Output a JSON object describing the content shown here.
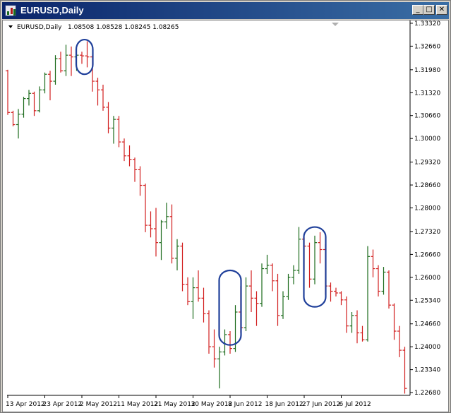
{
  "window": {
    "title": "EURUSD,Daily",
    "minimize_label": "_",
    "maximize_label": "□",
    "close_label": "✕"
  },
  "header": {
    "symbol_label": "EURUSD,Daily",
    "ohlc_values": "1.08508 1.08528 1.08245 1.08265"
  },
  "colors": {
    "bull": "#1c6b1c",
    "bear": "#d21e1e",
    "highlight": "#1f3f9a"
  },
  "chart_data": {
    "type": "ohlc-bar",
    "ylim": [
      1.226,
      1.334
    ],
    "y_ticks": [
      "1.33320",
      "1.32660",
      "1.31980",
      "1.31320",
      "1.30660",
      "1.30000",
      "1.29320",
      "1.28660",
      "1.28000",
      "1.27320",
      "1.26660",
      "1.26000",
      "1.25340",
      "1.24660",
      "1.24000",
      "1.23340",
      "1.22680"
    ],
    "x_ticks": [
      "13 Apr 2012",
      "23 Apr 2012",
      "2 May 2012",
      "11 May 2012",
      "21 May 2012",
      "30 May 2012",
      "8 Jun 2012",
      "18 Jun 2012",
      "27 Jun 2012",
      "6 Jul 2012"
    ],
    "ohlc": [
      [
        1.3195,
        1.3198,
        1.3068,
        1.3075
      ],
      [
        1.3075,
        1.308,
        1.3035,
        1.304
      ],
      [
        1.304,
        1.3085,
        1.3,
        1.307
      ],
      [
        1.307,
        1.312,
        1.306,
        1.3115
      ],
      [
        1.3115,
        1.314,
        1.3095,
        1.313
      ],
      [
        1.313,
        1.3135,
        1.3065,
        1.308
      ],
      [
        1.308,
        1.315,
        1.3075,
        1.314
      ],
      [
        1.314,
        1.319,
        1.313,
        1.3185
      ],
      [
        1.3185,
        1.3195,
        1.311,
        1.3165
      ],
      [
        1.3165,
        1.324,
        1.3155,
        1.323
      ],
      [
        1.323,
        1.325,
        1.319,
        1.3195
      ],
      [
        1.3195,
        1.327,
        1.318,
        1.324
      ],
      [
        1.324,
        1.3265,
        1.318,
        1.3235
      ],
      [
        1.3235,
        1.326,
        1.3195,
        1.324
      ],
      [
        1.324,
        1.325,
        1.3215,
        1.3238
      ],
      [
        1.3238,
        1.328,
        1.3205,
        1.3235
      ],
      [
        1.3235,
        1.324,
        1.3135,
        1.3165
      ],
      [
        1.3165,
        1.3175,
        1.3095,
        1.314
      ],
      [
        1.314,
        1.3155,
        1.308,
        1.309
      ],
      [
        1.309,
        1.3105,
        1.3015,
        1.303
      ],
      [
        1.303,
        1.3065,
        1.2985,
        1.3055
      ],
      [
        1.3055,
        1.3065,
        1.2975,
        1.299
      ],
      [
        1.299,
        1.3,
        1.2935,
        1.295
      ],
      [
        1.295,
        1.298,
        1.292,
        1.294
      ],
      [
        1.294,
        1.2945,
        1.2875,
        1.291
      ],
      [
        1.291,
        1.292,
        1.2835,
        1.2865
      ],
      [
        1.2865,
        1.287,
        1.273,
        1.275
      ],
      [
        1.275,
        1.279,
        1.2715,
        1.274
      ],
      [
        1.274,
        1.28,
        1.266,
        1.27
      ],
      [
        1.27,
        1.2765,
        1.265,
        1.276
      ],
      [
        1.276,
        1.2815,
        1.274,
        1.2775
      ],
      [
        1.2775,
        1.281,
        1.264,
        1.2655
      ],
      [
        1.2655,
        1.271,
        1.262,
        1.269
      ],
      [
        1.269,
        1.27,
        1.256,
        1.258
      ],
      [
        1.258,
        1.26,
        1.252,
        1.253
      ],
      [
        1.253,
        1.26,
        1.248,
        1.257
      ],
      [
        1.257,
        1.262,
        1.253,
        1.254
      ],
      [
        1.254,
        1.257,
        1.247,
        1.2495
      ],
      [
        1.2495,
        1.2505,
        1.238,
        1.24
      ],
      [
        1.24,
        1.245,
        1.234,
        1.2365
      ],
      [
        1.2365,
        1.24,
        1.228,
        1.2385
      ],
      [
        1.2385,
        1.245,
        1.2375,
        1.2435
      ],
      [
        1.2435,
        1.2445,
        1.238,
        1.2395
      ],
      [
        1.2395,
        1.252,
        1.2385,
        1.25
      ],
      [
        1.25,
        1.2575,
        1.244,
        1.2455
      ],
      [
        1.2455,
        1.26,
        1.2445,
        1.2575
      ],
      [
        1.2575,
        1.262,
        1.25,
        1.254
      ],
      [
        1.254,
        1.256,
        1.246,
        1.2525
      ],
      [
        1.2525,
        1.264,
        1.2515,
        1.2625
      ],
      [
        1.2625,
        1.2665,
        1.261,
        1.2635
      ],
      [
        1.2635,
        1.264,
        1.256,
        1.259
      ],
      [
        1.259,
        1.261,
        1.246,
        1.249
      ],
      [
        1.249,
        1.256,
        1.248,
        1.2545
      ],
      [
        1.2545,
        1.261,
        1.2535,
        1.26
      ],
      [
        1.26,
        1.2635,
        1.258,
        1.262
      ],
      [
        1.262,
        1.2745,
        1.261,
        1.271
      ],
      [
        1.271,
        1.2715,
        1.262,
        1.269
      ],
      [
        1.269,
        1.27,
        1.257,
        1.2595
      ],
      [
        1.2595,
        1.272,
        1.258,
        1.27
      ],
      [
        1.27,
        1.273,
        1.264,
        1.268
      ],
      [
        1.268,
        1.2695,
        1.255,
        1.2575
      ],
      [
        1.2575,
        1.2585,
        1.253,
        1.256
      ],
      [
        1.256,
        1.257,
        1.2545,
        1.2555
      ],
      [
        1.2555,
        1.256,
        1.252,
        1.2535
      ],
      [
        1.2535,
        1.2545,
        1.244,
        1.246
      ],
      [
        1.246,
        1.25,
        1.244,
        1.249
      ],
      [
        1.249,
        1.2505,
        1.241,
        1.244
      ],
      [
        1.244,
        1.246,
        1.2415,
        1.242
      ],
      [
        1.242,
        1.269,
        1.2415,
        1.266
      ],
      [
        1.266,
        1.268,
        1.26,
        1.2625
      ],
      [
        1.2625,
        1.2635,
        1.2545,
        1.256
      ],
      [
        1.256,
        1.263,
        1.255,
        1.2615
      ],
      [
        1.2615,
        1.262,
        1.251,
        1.252
      ],
      [
        1.252,
        1.2525,
        1.242,
        1.2445
      ],
      [
        1.2445,
        1.246,
        1.237,
        1.239
      ],
      [
        1.239,
        1.24,
        1.2265,
        1.228
      ]
    ],
    "highlights": [
      {
        "bars": [
          14,
          15
        ],
        "price_range": [
          1.3185,
          1.3285
        ]
      },
      {
        "bars": [
          41,
          43
        ],
        "price_range": [
          1.2405,
          1.262
        ]
      },
      {
        "bars": [
          57,
          59
        ],
        "price_range": [
          1.2515,
          1.2745
        ]
      }
    ]
  }
}
